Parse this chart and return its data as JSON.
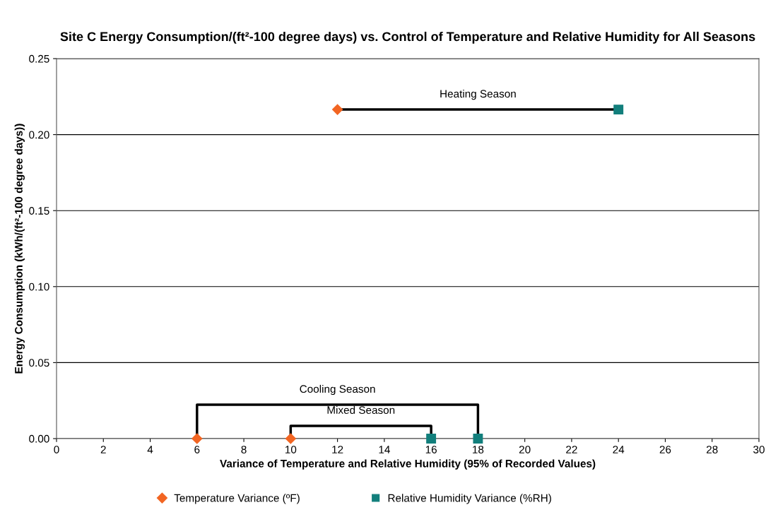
{
  "chart_data": {
    "type": "scatter",
    "title": "Site C Energy Consumption/(ft²-100 degree days) vs. Control of Temperature and Relative Humidity for All Seasons",
    "xlabel": "Variance of Temperature and Relative Humidity (95% of Recorded Values)",
    "ylabel": "Energy Consumption (kWh/(ft²-100 degree days))",
    "series": [
      {
        "name": "Temperature Variance (ºF)",
        "color": "#f26522",
        "marker": "diamond",
        "x": [
          12,
          6,
          10
        ],
        "values": [
          0.2165,
          0,
          0
        ]
      },
      {
        "name": "Relative Humidity Variance (%RH)",
        "color": "#127f7c",
        "marker": "square",
        "x": [
          24,
          18,
          16
        ],
        "values": [
          0.2165,
          0,
          0
        ]
      },
      {
        "type": "line",
        "color": "#000000",
        "x": [
          12,
          24
        ],
        "values": [
          0.2165,
          0.2165
        ]
      },
      {
        "type": "line",
        "color": "#000000",
        "x": [
          6,
          6,
          18,
          18
        ],
        "values": [
          0,
          0.0223,
          0.0223,
          0
        ]
      },
      {
        "type": "line",
        "color": "#000000",
        "x": [
          10,
          10,
          16,
          16
        ],
        "values": [
          0,
          0.0084,
          0.0084,
          0
        ]
      }
    ],
    "annotations": [
      "Heating Season",
      "Cooling Season",
      "Mixed Season"
    ],
    "xlim": [
      0,
      30
    ],
    "xticks": [
      0,
      2,
      4,
      6,
      8,
      10,
      12,
      14,
      16,
      18,
      20,
      22,
      24,
      26,
      28,
      30
    ],
    "ylim": [
      0,
      0.25
    ],
    "yticks": [
      {
        "value": 0,
        "label": "0.00"
      },
      {
        "value": 0.05,
        "label": "0.05"
      },
      {
        "value": 0.1,
        "label": "0.10"
      },
      {
        "value": 0.15,
        "label": "0.15"
      },
      {
        "value": 0.2,
        "label": "0.20"
      },
      {
        "value": 0.25,
        "label": "0.25"
      }
    ],
    "grid": "y",
    "legend": "bottom"
  }
}
